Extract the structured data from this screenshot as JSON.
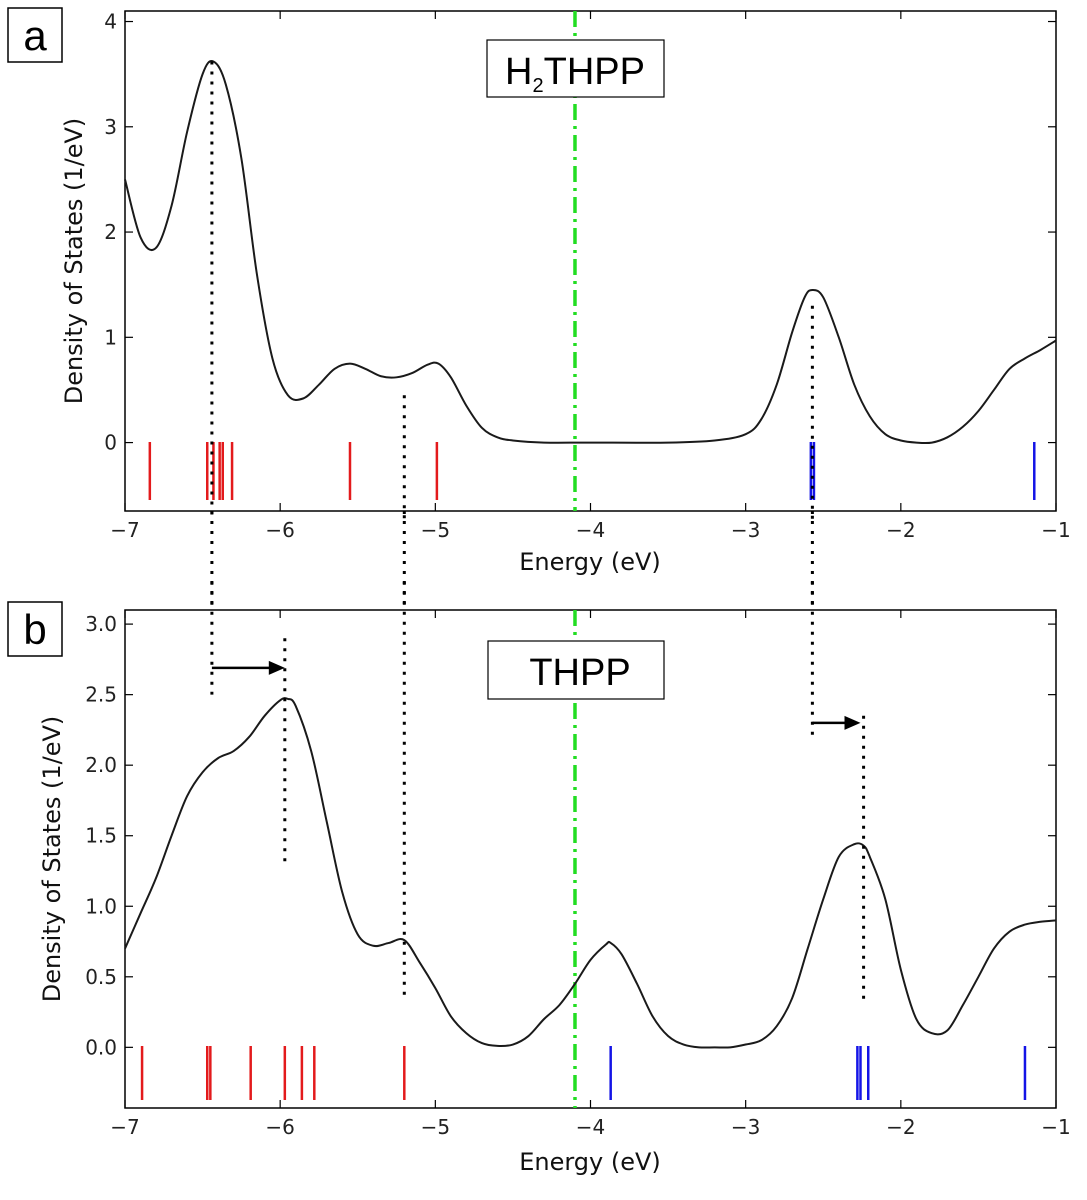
{
  "figure": {
    "panels": [
      {
        "letter": "a",
        "molecule_main": "THPP",
        "molecule_prefix": "H",
        "molecule_subscript": "2"
      },
      {
        "letter": "b",
        "molecule_main": "THPP",
        "molecule_prefix": "",
        "molecule_subscript": ""
      }
    ]
  },
  "chart_data": [
    {
      "type": "line",
      "panel": "a",
      "title": "H2THPP",
      "xlabel": "Energy (eV)",
      "ylabel": "Density of States (1/eV)",
      "xlim": [
        -7,
        -1
      ],
      "ylim": [
        -0.65,
        4.1
      ],
      "xticks": [
        -7,
        -6,
        -5,
        -4,
        -3,
        -2,
        -1
      ],
      "xtick_labels": [
        "−7",
        "−6",
        "−5",
        "−4",
        "−3",
        "−2",
        "−1"
      ],
      "yticks": [
        0,
        1,
        2,
        3,
        4
      ],
      "ytick_labels": [
        "0",
        "1",
        "2",
        "3",
        "4"
      ],
      "fermi_level": -4.1,
      "dos_curve": {
        "x": [
          -7.0,
          -6.9,
          -6.8,
          -6.7,
          -6.6,
          -6.5,
          -6.43,
          -6.35,
          -6.25,
          -6.15,
          -6.05,
          -5.95,
          -5.85,
          -5.75,
          -5.65,
          -5.55,
          -5.45,
          -5.35,
          -5.25,
          -5.15,
          -5.05,
          -4.98,
          -4.9,
          -4.8,
          -4.7,
          -4.6,
          -4.5,
          -4.3,
          -4.0,
          -3.5,
          -3.2,
          -3.0,
          -2.9,
          -2.8,
          -2.7,
          -2.62,
          -2.57,
          -2.5,
          -2.4,
          -2.3,
          -2.2,
          -2.1,
          -2.0,
          -1.9,
          -1.8,
          -1.7,
          -1.6,
          -1.5,
          -1.4,
          -1.3,
          -1.2,
          -1.1,
          -1.0
        ],
        "y": [
          2.5,
          1.95,
          1.85,
          2.25,
          2.95,
          3.5,
          3.62,
          3.4,
          2.7,
          1.6,
          0.8,
          0.45,
          0.42,
          0.55,
          0.7,
          0.75,
          0.7,
          0.63,
          0.62,
          0.66,
          0.74,
          0.75,
          0.62,
          0.35,
          0.14,
          0.05,
          0.02,
          0.0,
          0.0,
          0.0,
          0.02,
          0.08,
          0.22,
          0.55,
          1.05,
          1.38,
          1.45,
          1.38,
          1.0,
          0.55,
          0.25,
          0.08,
          0.02,
          0.0,
          0.0,
          0.05,
          0.15,
          0.3,
          0.5,
          0.7,
          0.8,
          0.88,
          0.97
        ]
      },
      "occupied_levels": [
        -6.84,
        -6.47,
        -6.43,
        -6.39,
        -6.37,
        -6.31,
        -5.55,
        -4.99
      ],
      "unoccupied_levels": [
        -2.58,
        -2.56,
        -1.14
      ],
      "dotted_guides": [
        {
          "x": -6.44,
          "y_from": -0.75,
          "y_to": 3.62
        },
        {
          "x": -5.2,
          "y_from": -0.75,
          "y_to": 0.45
        },
        {
          "x": -2.57,
          "y_from": -0.75,
          "y_to": 1.3
        }
      ]
    },
    {
      "type": "line",
      "panel": "b",
      "title": "THPP",
      "xlabel": "Energy (eV)",
      "ylabel": "Density of States (1/eV)",
      "xlim": [
        -7,
        -1
      ],
      "ylim": [
        -0.43,
        3.1
      ],
      "xticks": [
        -7,
        -6,
        -5,
        -4,
        -3,
        -2,
        -1
      ],
      "xtick_labels": [
        "−7",
        "−6",
        "−5",
        "−4",
        "−3",
        "−2",
        "−1"
      ],
      "yticks": [
        0.0,
        0.5,
        1.0,
        1.5,
        2.0,
        2.5,
        3.0
      ],
      "ytick_labels": [
        "0.0",
        "0.5",
        "1.0",
        "1.5",
        "2.0",
        "2.5",
        "3.0"
      ],
      "fermi_level": -4.1,
      "dos_curve": {
        "x": [
          -7.0,
          -6.9,
          -6.8,
          -6.7,
          -6.6,
          -6.5,
          -6.4,
          -6.3,
          -6.2,
          -6.1,
          -6.0,
          -5.95,
          -5.9,
          -5.8,
          -5.7,
          -5.6,
          -5.5,
          -5.4,
          -5.3,
          -5.2,
          -5.1,
          -5.0,
          -4.9,
          -4.8,
          -4.7,
          -4.6,
          -4.5,
          -4.4,
          -4.3,
          -4.2,
          -4.1,
          -4.0,
          -3.9,
          -3.87,
          -3.8,
          -3.7,
          -3.6,
          -3.5,
          -3.4,
          -3.3,
          -3.2,
          -3.1,
          -3.0,
          -2.9,
          -2.8,
          -2.7,
          -2.6,
          -2.5,
          -2.4,
          -2.3,
          -2.24,
          -2.2,
          -2.1,
          -2.0,
          -1.9,
          -1.8,
          -1.7,
          -1.6,
          -1.5,
          -1.4,
          -1.3,
          -1.2,
          -1.1,
          -1.0
        ],
        "y": [
          0.7,
          0.95,
          1.2,
          1.5,
          1.78,
          1.95,
          2.05,
          2.1,
          2.2,
          2.35,
          2.46,
          2.47,
          2.42,
          2.1,
          1.6,
          1.1,
          0.8,
          0.72,
          0.74,
          0.76,
          0.6,
          0.42,
          0.22,
          0.1,
          0.03,
          0.01,
          0.02,
          0.08,
          0.2,
          0.3,
          0.45,
          0.62,
          0.73,
          0.74,
          0.66,
          0.45,
          0.22,
          0.08,
          0.02,
          0.0,
          0.0,
          0.0,
          0.02,
          0.05,
          0.15,
          0.35,
          0.7,
          1.05,
          1.35,
          1.44,
          1.43,
          1.35,
          1.05,
          0.55,
          0.2,
          0.1,
          0.12,
          0.3,
          0.5,
          0.7,
          0.82,
          0.87,
          0.89,
          0.9
        ]
      },
      "occupied_levels": [
        -6.89,
        -6.47,
        -6.45,
        -6.19,
        -5.97,
        -5.86,
        -5.78,
        -5.2
      ],
      "unoccupied_levels": [
        -3.87,
        -2.28,
        -2.26,
        -2.21,
        -1.2
      ],
      "dotted_guides": [
        {
          "x": -6.44,
          "y_from": 2.5,
          "y_to": 3.3
        },
        {
          "x": -5.97,
          "y_from": 1.3,
          "y_to": 2.9
        },
        {
          "x": -5.2,
          "y_from": 0.35,
          "y_to": 3.3
        },
        {
          "x": -2.57,
          "y_from": 2.2,
          "y_to": 3.3
        },
        {
          "x": -2.24,
          "y_from": 0.3,
          "y_to": 2.35
        }
      ],
      "shift_arrows": [
        {
          "x_from": -6.44,
          "x_to": -5.97,
          "y": 2.69
        },
        {
          "x_from": -2.57,
          "x_to": -2.26,
          "y": 2.3
        }
      ]
    }
  ],
  "colors": {
    "curve": "#1a1a1a",
    "occupied": "#e31a1c",
    "unoccupied": "#1414e6",
    "fermi": "#22dd22",
    "guide": "#000000",
    "axis": "#000000"
  }
}
